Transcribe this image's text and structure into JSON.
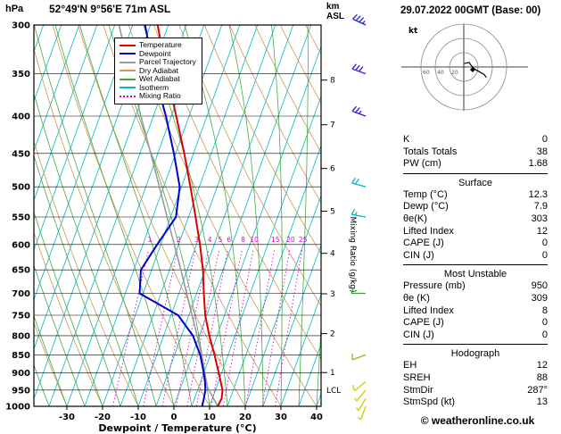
{
  "header": {
    "pressure_unit": "hPa",
    "location": "52°49'N 9°56'E 71m ASL",
    "datetime": "29.07.2022 00GMT (Base: 00)",
    "km_label": "km",
    "asl_label": "ASL"
  },
  "chart_data": {
    "type": "skewt_log_p_sounding",
    "x_axis": {
      "label": "Dewpoint / Temperature (°C)",
      "ticks": [
        -30,
        -20,
        -10,
        0,
        10,
        20,
        30,
        40
      ],
      "range": [
        -30,
        40
      ]
    },
    "pressure_axis": {
      "unit": "hPa",
      "ticks": [
        300,
        350,
        400,
        450,
        500,
        550,
        600,
        650,
        700,
        750,
        800,
        850,
        900,
        950,
        1000
      ],
      "range": [
        300,
        1000
      ],
      "scale": "log"
    },
    "altitude_axis": {
      "ticks_km": [
        1,
        2,
        3,
        4,
        5,
        6,
        7,
        8
      ],
      "km_pressures": {
        "1": 899,
        "2": 795,
        "3": 701,
        "4": 617,
        "5": 540,
        "6": 472,
        "7": 411,
        "8": 357
      }
    },
    "mixing_ratio_axis_label": "Mixing Ratio (g/kg)",
    "mixing_ratio_lines": [
      1,
      2,
      3,
      4,
      5,
      6,
      8,
      10,
      15,
      20,
      25
    ],
    "lcl": {
      "label": "LCL",
      "pressure": 950
    },
    "legend": [
      {
        "label": "Temperature",
        "color": "#dd0000",
        "style": "solid"
      },
      {
        "label": "Dewpoint",
        "color": "#0000cc",
        "style": "solid"
      },
      {
        "label": "Parcel Trajectory",
        "color": "#999999",
        "style": "solid"
      },
      {
        "label": "Dry Adiabat",
        "color": "#cc9955",
        "style": "solid"
      },
      {
        "label": "Wet Adiabat",
        "color": "#44aa44",
        "style": "solid"
      },
      {
        "label": "Isotherm",
        "color": "#00bbbb",
        "style": "solid"
      },
      {
        "label": "Mixing Ratio",
        "color": "#dd00dd",
        "style": "dotted"
      }
    ],
    "series": {
      "temperature": {
        "name": "Temperature",
        "color": "#dd0000",
        "points_p_t": [
          [
            1000,
            12.3
          ],
          [
            975,
            12.6
          ],
          [
            950,
            12.0
          ],
          [
            925,
            10.6
          ],
          [
            900,
            9.2
          ],
          [
            850,
            6.2
          ],
          [
            800,
            2.8
          ],
          [
            750,
            -0.4
          ],
          [
            700,
            -3.0
          ],
          [
            650,
            -5.6
          ],
          [
            600,
            -9.0
          ],
          [
            550,
            -13.0
          ],
          [
            500,
            -17.5
          ],
          [
            450,
            -22.6
          ],
          [
            400,
            -28.6
          ],
          [
            350,
            -35.5
          ],
          [
            300,
            -43.0
          ]
        ]
      },
      "dewpoint": {
        "name": "Dewpoint",
        "color": "#0000cc",
        "points_p_t": [
          [
            1000,
            7.9
          ],
          [
            975,
            7.6
          ],
          [
            950,
            7.2
          ],
          [
            925,
            6.2
          ],
          [
            900,
            5.0
          ],
          [
            850,
            2.2
          ],
          [
            800,
            -1.8
          ],
          [
            750,
            -8.0
          ],
          [
            700,
            -21.0
          ],
          [
            650,
            -23.0
          ],
          [
            600,
            -21.0
          ],
          [
            550,
            -18.5
          ],
          [
            500,
            -20.5
          ],
          [
            450,
            -25.5
          ],
          [
            400,
            -31.5
          ],
          [
            350,
            -39.0
          ],
          [
            300,
            -46.5
          ]
        ]
      },
      "parcel": {
        "name": "Parcel Trajectory",
        "color": "#999999",
        "points_p_t": [
          [
            1000,
            12.3
          ],
          [
            950,
            8.2
          ],
          [
            940,
            7.4
          ],
          [
            900,
            5.3
          ],
          [
            850,
            2.6
          ],
          [
            800,
            -0.6
          ],
          [
            750,
            -4.1
          ],
          [
            700,
            -7.8
          ],
          [
            650,
            -11.8
          ],
          [
            600,
            -16.2
          ],
          [
            550,
            -21.0
          ],
          [
            500,
            -26.2
          ],
          [
            450,
            -32.0
          ],
          [
            400,
            -38.5
          ],
          [
            350,
            -45.8
          ],
          [
            300,
            -53.8
          ]
        ]
      }
    },
    "wind_barbs": [
      {
        "pressure": 300,
        "dir_deg": 295,
        "speed_kt": 35,
        "color": "#2222dd"
      },
      {
        "pressure": 350,
        "dir_deg": 290,
        "speed_kt": 30,
        "color": "#2222dd"
      },
      {
        "pressure": 400,
        "dir_deg": 290,
        "speed_kt": 25,
        "color": "#2222dd"
      },
      {
        "pressure": 500,
        "dir_deg": 285,
        "speed_kt": 20,
        "color": "#00b8b8"
      },
      {
        "pressure": 550,
        "dir_deg": 280,
        "speed_kt": 15,
        "color": "#00b8b8"
      },
      {
        "pressure": 700,
        "dir_deg": 270,
        "speed_kt": 10,
        "color": "#33aa33"
      },
      {
        "pressure": 850,
        "dir_deg": 250,
        "speed_kt": 10,
        "color": "#88bb22"
      },
      {
        "pressure": 925,
        "dir_deg": 230,
        "speed_kt": 10,
        "color": "#cccc00"
      },
      {
        "pressure": 950,
        "dir_deg": 220,
        "speed_kt": 5,
        "color": "#cccc00"
      },
      {
        "pressure": 975,
        "dir_deg": 210,
        "speed_kt": 5,
        "color": "#cccc00"
      },
      {
        "pressure": 1000,
        "dir_deg": 200,
        "speed_kt": 5,
        "color": "#cccc00"
      }
    ],
    "background": {
      "isotherm_color": "#00bbbb",
      "dry_adiabat_color": "#cc9955",
      "wet_adiabat_color": "#44aa44",
      "mixing_ratio_color": "#dd00dd",
      "isotherm_step_c": 5,
      "dry_adiabat_step_c": 10,
      "wet_adiabat_step_c": 5
    }
  },
  "hodograph": {
    "unit_label": "kt",
    "ring_values_kt": [
      20,
      40,
      60
    ],
    "ring_labels": [
      "20",
      "40",
      "60"
    ],
    "trace_uv_kt": [
      [
        0.9,
        4.9
      ],
      [
        7.7,
        6.4
      ],
      [
        9.4,
        3.4
      ],
      [
        14.8,
        -2.6
      ],
      [
        19.3,
        -5.2
      ],
      [
        28.2,
        -10.3
      ],
      [
        31.7,
        -14.8
      ]
    ],
    "storm_motion": {
      "dir_deg": 287,
      "speed_kt": 13
    }
  },
  "indices": {
    "general_rows": [
      {
        "label": "K",
        "value": "0"
      },
      {
        "label": "Totals Totals",
        "value": "38"
      },
      {
        "label": "PW (cm)",
        "value": "1.68"
      }
    ],
    "sections": [
      {
        "title": "Surface",
        "rows": [
          {
            "label": "Temp (°C)",
            "value": "12.3"
          },
          {
            "label": "Dewp (°C)",
            "value": "7.9"
          },
          {
            "label": "θe(K)",
            "value": "303"
          },
          {
            "label": "Lifted Index",
            "value": "12"
          },
          {
            "label": "CAPE (J)",
            "value": "0"
          },
          {
            "label": "CIN (J)",
            "value": "0"
          }
        ]
      },
      {
        "title": "Most Unstable",
        "rows": [
          {
            "label": "Pressure (mb)",
            "value": "950"
          },
          {
            "label": "θe (K)",
            "value": "309"
          },
          {
            "label": "Lifted Index",
            "value": "8"
          },
          {
            "label": "CAPE (J)",
            "value": "0"
          },
          {
            "label": "CIN (J)",
            "value": "0"
          }
        ]
      },
      {
        "title": "Hodograph",
        "rows": [
          {
            "label": "EH",
            "value": "12"
          },
          {
            "label": "SREH",
            "value": "88"
          },
          {
            "label": "StmDir",
            "value": "287°"
          },
          {
            "label": "StmSpd (kt)",
            "value": "13"
          }
        ]
      }
    ]
  },
  "copyright": "© weatheronline.co.uk"
}
